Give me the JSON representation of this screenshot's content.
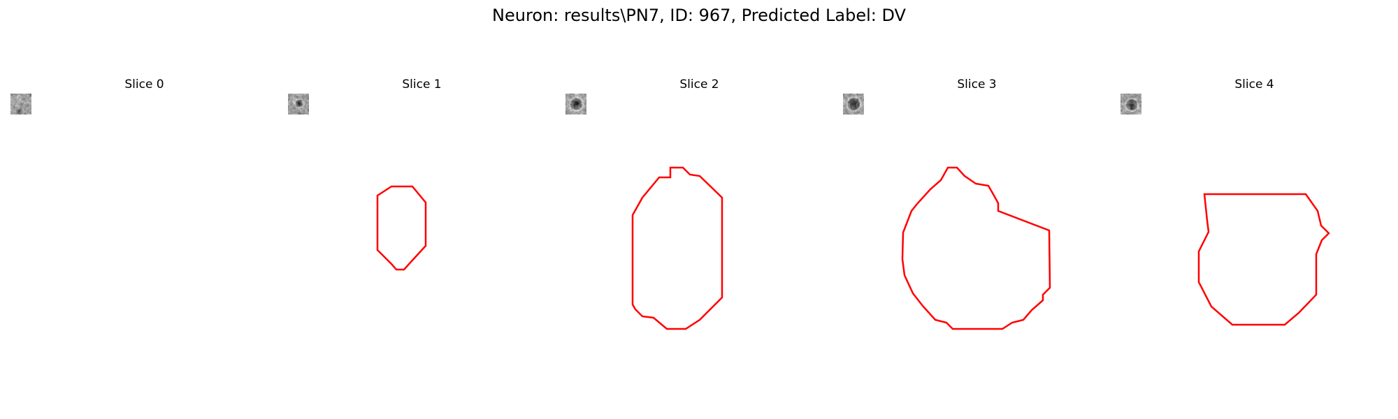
{
  "figure": {
    "title": "Neuron: results\\PN7, ID: 967, Predicted Label: DV"
  },
  "panels": [
    {
      "title": "Slice 0",
      "has_contour": false
    },
    {
      "title": "Slice 1",
      "has_contour": true
    },
    {
      "title": "Slice 2",
      "has_contour": true
    },
    {
      "title": "Slice 3",
      "has_contour": true
    },
    {
      "title": "Slice 4",
      "has_contour": true
    }
  ],
  "colors": {
    "contour": "#ff0000",
    "background": "#ffffff"
  }
}
